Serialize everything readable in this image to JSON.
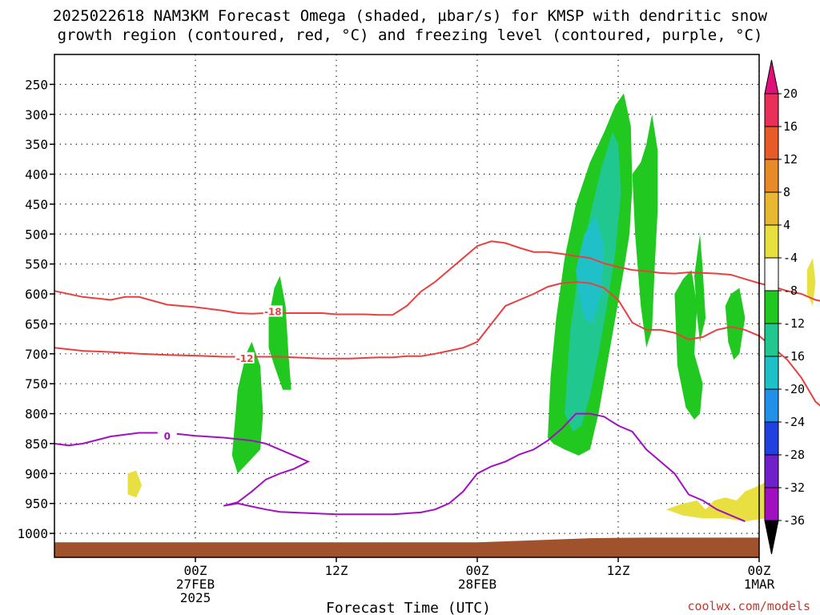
{
  "chart_data": {
    "type": "heatmap",
    "title_line1": "2025022618 NAM3KM Forecast Omega (shaded, µbar/s) for KMSP with dendritic snow",
    "title_line2": "growth region (contoured, red, °C) and freezing level (contoured, purple, °C)",
    "xlabel": "Forecast Time (UTC)",
    "credit": "coolwx.com/models",
    "x_axis": {
      "range_hours": [
        -10,
        40
      ],
      "ticks": [
        {
          "hour": 0,
          "line1": "00Z",
          "line2": "27FEB",
          "line3": "2025"
        },
        {
          "hour": 10,
          "line1": "12Z",
          "line2": "",
          "line3": ""
        },
        {
          "hour": 20,
          "line1": "00Z",
          "line2": "28FEB",
          "line3": ""
        },
        {
          "hour": 30,
          "line1": "12Z",
          "line2": "",
          "line3": ""
        },
        {
          "hour": 40,
          "line1": "00Z",
          "line2": "1MAR",
          "line3": ""
        }
      ]
    },
    "y_axis": {
      "unit": "hPa",
      "range": [
        200,
        1040
      ],
      "ticks": [
        250,
        300,
        350,
        400,
        450,
        500,
        550,
        600,
        650,
        700,
        750,
        800,
        850,
        900,
        950,
        1000
      ],
      "grid": true
    },
    "colorbar": {
      "levels": [
        {
          "label": "20",
          "color": "#e8305a"
        },
        {
          "label": "16",
          "color": "#e85a28"
        },
        {
          "label": "12",
          "color": "#e88a28"
        },
        {
          "label": "8",
          "color": "#e8b830"
        },
        {
          "label": "4",
          "color": "#e8e040"
        },
        {
          "label": "-4",
          "color": "#ffffff"
        },
        {
          "label": "-8",
          "color": "#20c820"
        },
        {
          "label": "-12",
          "color": "#20c890"
        },
        {
          "label": "-16",
          "color": "#20c0c8"
        },
        {
          "label": "-20",
          "color": "#2090e8"
        },
        {
          "label": "-24",
          "color": "#2040e0"
        },
        {
          "label": "-28",
          "color": "#7020c8"
        },
        {
          "label": "-32",
          "color": "#a010c0"
        },
        {
          "label": "-36",
          "color": "#a0a0a0"
        }
      ],
      "top_arrow_color": "#e0107a",
      "bottom_arrow_color": "#000000"
    },
    "terrain_color": "#a0522d",
    "omega_regions": [
      {
        "color": "#20c820",
        "points": [
          [
            2.6,
            870
          ],
          [
            3.0,
            760
          ],
          [
            3.6,
            700
          ],
          [
            4.0,
            680
          ],
          [
            4.6,
            720
          ],
          [
            4.8,
            800
          ],
          [
            4.6,
            860
          ],
          [
            3.8,
            880
          ],
          [
            3.0,
            900
          ]
        ]
      },
      {
        "color": "#20c820",
        "points": [
          [
            5.2,
            640
          ],
          [
            5.6,
            590
          ],
          [
            6.0,
            570
          ],
          [
            6.4,
            620
          ],
          [
            6.6,
            700
          ],
          [
            6.8,
            760
          ],
          [
            6.2,
            760
          ],
          [
            5.6,
            720
          ],
          [
            5.2,
            690
          ]
        ]
      },
      {
        "color": "#20c820",
        "points": [
          [
            25.0,
            840
          ],
          [
            25.2,
            740
          ],
          [
            25.6,
            640
          ],
          [
            26.2,
            540
          ],
          [
            27.0,
            450
          ],
          [
            28.0,
            380
          ],
          [
            29.0,
            330
          ],
          [
            29.8,
            285
          ],
          [
            30.4,
            265
          ],
          [
            30.9,
            320
          ],
          [
            31.0,
            420
          ],
          [
            30.8,
            500
          ],
          [
            30.4,
            560
          ],
          [
            29.8,
            640
          ],
          [
            29.2,
            720
          ],
          [
            28.6,
            800
          ],
          [
            28.0,
            860
          ],
          [
            27.2,
            870
          ],
          [
            26.2,
            860
          ],
          [
            25.4,
            850
          ]
        ]
      },
      {
        "color": "#20c890",
        "points": [
          [
            26.2,
            800
          ],
          [
            26.6,
            660
          ],
          [
            27.2,
            560
          ],
          [
            28.0,
            470
          ],
          [
            28.8,
            390
          ],
          [
            29.6,
            330
          ],
          [
            30.0,
            350
          ],
          [
            30.2,
            430
          ],
          [
            29.8,
            530
          ],
          [
            29.2,
            620
          ],
          [
            28.6,
            700
          ],
          [
            28.0,
            770
          ],
          [
            27.4,
            820
          ],
          [
            26.8,
            830
          ]
        ]
      },
      {
        "color": "#20c0c8",
        "points": [
          [
            27.0,
            560
          ],
          [
            27.6,
            500
          ],
          [
            28.4,
            470
          ],
          [
            29.0,
            520
          ],
          [
            28.8,
            600
          ],
          [
            28.2,
            650
          ],
          [
            27.6,
            640
          ],
          [
            27.2,
            600
          ]
        ]
      },
      {
        "color": "#20c820",
        "points": [
          [
            31.0,
            400
          ],
          [
            31.6,
            380
          ],
          [
            32.0,
            350
          ],
          [
            32.4,
            300
          ],
          [
            32.8,
            360
          ],
          [
            32.8,
            460
          ],
          [
            32.6,
            550
          ],
          [
            32.4,
            660
          ],
          [
            32.0,
            690
          ],
          [
            31.6,
            620
          ],
          [
            31.2,
            500
          ]
        ]
      },
      {
        "color": "#20c820",
        "points": [
          [
            34.0,
            600
          ],
          [
            34.6,
            575
          ],
          [
            35.2,
            560
          ],
          [
            35.6,
            620
          ],
          [
            35.4,
            700
          ],
          [
            36.0,
            750
          ],
          [
            35.8,
            800
          ],
          [
            35.4,
            810
          ],
          [
            34.8,
            790
          ],
          [
            34.2,
            720
          ]
        ]
      },
      {
        "color": "#20c820",
        "points": [
          [
            35.4,
            570
          ],
          [
            35.8,
            500
          ],
          [
            36.0,
            560
          ],
          [
            36.2,
            640
          ],
          [
            35.8,
            680
          ],
          [
            35.6,
            640
          ]
        ]
      },
      {
        "color": "#20c820",
        "points": [
          [
            37.6,
            620
          ],
          [
            38.0,
            600
          ],
          [
            38.6,
            590
          ],
          [
            39.0,
            640
          ],
          [
            38.6,
            700
          ],
          [
            38.2,
            710
          ],
          [
            37.8,
            680
          ]
        ]
      },
      {
        "color": "#e8e040",
        "points": [
          [
            -4.8,
            900
          ],
          [
            -4.2,
            895
          ],
          [
            -3.8,
            920
          ],
          [
            -4.2,
            940
          ],
          [
            -4.8,
            935
          ]
        ]
      },
      {
        "color": "#e8e040",
        "points": [
          [
            43.4,
            560
          ],
          [
            43.8,
            540
          ],
          [
            44.0,
            580
          ],
          [
            43.8,
            620
          ],
          [
            43.4,
            600
          ]
        ]
      },
      {
        "color": "#e8e040",
        "points": [
          [
            33.4,
            960
          ],
          [
            34.6,
            950
          ],
          [
            35.6,
            945
          ],
          [
            36.2,
            960
          ],
          [
            36.8,
            945
          ],
          [
            37.6,
            940
          ],
          [
            38.4,
            945
          ],
          [
            39.0,
            930
          ],
          [
            40.0,
            920
          ],
          [
            40.8,
            910
          ],
          [
            41.0,
            960
          ],
          [
            40.4,
            975
          ],
          [
            39.0,
            980
          ],
          [
            37.6,
            975
          ],
          [
            36.0,
            975
          ],
          [
            34.6,
            970
          ]
        ]
      }
    ],
    "contours": [
      {
        "name": "-18",
        "color": "#e84040",
        "label": "-18",
        "label_at": [
          5.5,
          630
        ],
        "points": [
          [
            -10,
            595
          ],
          [
            -8,
            605
          ],
          [
            -6,
            610
          ],
          [
            -5,
            605
          ],
          [
            -4,
            605
          ],
          [
            -2,
            618
          ],
          [
            0,
            622
          ],
          [
            2,
            628
          ],
          [
            3,
            632
          ],
          [
            4,
            633
          ],
          [
            5,
            632
          ],
          [
            6,
            632
          ],
          [
            7,
            632
          ],
          [
            8,
            632
          ],
          [
            9,
            632
          ],
          [
            10,
            634
          ],
          [
            11,
            634
          ],
          [
            12,
            634
          ],
          [
            13,
            635
          ],
          [
            14,
            635
          ],
          [
            15,
            620
          ],
          [
            16,
            596
          ],
          [
            17,
            580
          ],
          [
            18,
            560
          ],
          [
            19,
            540
          ],
          [
            20,
            520
          ],
          [
            21,
            512
          ],
          [
            22,
            515
          ],
          [
            23,
            523
          ],
          [
            24,
            530
          ],
          [
            25,
            530
          ],
          [
            26,
            533
          ],
          [
            27,
            537
          ],
          [
            28,
            540
          ],
          [
            29,
            549
          ],
          [
            30,
            555
          ],
          [
            31,
            560
          ],
          [
            32,
            562
          ],
          [
            33,
            565
          ],
          [
            34,
            566
          ],
          [
            35,
            564
          ],
          [
            36,
            565
          ],
          [
            37,
            566
          ],
          [
            38,
            568
          ],
          [
            39,
            575
          ],
          [
            40,
            582
          ],
          [
            41,
            588
          ],
          [
            42,
            595
          ],
          [
            43,
            600
          ],
          [
            44,
            610
          ],
          [
            45,
            615
          ]
        ]
      },
      {
        "name": "-12",
        "color": "#e84040",
        "label": "-12",
        "label_at": [
          3.5,
          708
        ],
        "points": [
          [
            -10,
            690
          ],
          [
            -8,
            695
          ],
          [
            -6,
            697
          ],
          [
            -4,
            700
          ],
          [
            -2,
            702
          ],
          [
            0,
            703
          ],
          [
            2,
            705
          ],
          [
            4,
            705
          ],
          [
            6,
            705
          ],
          [
            8,
            707
          ],
          [
            9,
            708
          ],
          [
            10,
            708
          ],
          [
            11,
            708
          ],
          [
            12,
            707
          ],
          [
            13,
            706
          ],
          [
            14,
            706
          ],
          [
            15,
            704
          ],
          [
            16,
            704
          ],
          [
            17,
            700
          ],
          [
            18,
            695
          ],
          [
            19,
            690
          ],
          [
            20,
            680
          ],
          [
            21,
            650
          ],
          [
            22,
            620
          ],
          [
            23,
            610
          ],
          [
            24,
            600
          ],
          [
            25,
            588
          ],
          [
            26,
            582
          ],
          [
            27,
            580
          ],
          [
            28,
            582
          ],
          [
            29,
            590
          ],
          [
            30,
            610
          ],
          [
            31,
            648
          ],
          [
            32,
            660
          ],
          [
            33,
            660
          ],
          [
            34,
            665
          ],
          [
            35,
            676
          ],
          [
            36,
            672
          ],
          [
            37,
            660
          ],
          [
            38,
            655
          ],
          [
            39,
            660
          ],
          [
            40,
            670
          ],
          [
            41,
            690
          ],
          [
            42,
            710
          ],
          [
            43,
            740
          ],
          [
            44,
            780
          ],
          [
            45,
            800
          ]
        ]
      },
      {
        "name": "0",
        "color": "#a010c0",
        "label": "0",
        "label_at": [
          -2.0,
          838
        ],
        "points": [
          [
            -10,
            850
          ],
          [
            -9,
            853
          ],
          [
            -8,
            850
          ],
          [
            -6,
            838
          ],
          [
            -4,
            832
          ],
          [
            -2,
            832
          ],
          [
            0,
            837
          ],
          [
            2,
            840
          ],
          [
            4,
            845
          ],
          [
            5,
            850
          ],
          [
            6,
            860
          ],
          [
            7,
            870
          ],
          [
            8,
            880
          ],
          [
            7,
            892
          ],
          [
            6,
            900
          ],
          [
            5,
            910
          ],
          [
            4,
            930
          ],
          [
            3,
            948
          ],
          [
            2,
            954
          ],
          [
            3,
            950
          ],
          [
            4,
            955
          ],
          [
            5,
            960
          ],
          [
            6,
            964
          ],
          [
            8,
            966
          ],
          [
            10,
            968
          ],
          [
            12,
            968
          ],
          [
            14,
            968
          ],
          [
            16,
            965
          ],
          [
            17,
            960
          ],
          [
            18,
            950
          ],
          [
            19,
            930
          ],
          [
            20,
            900
          ],
          [
            21,
            888
          ],
          [
            22,
            880
          ],
          [
            23,
            868
          ],
          [
            24,
            860
          ],
          [
            25,
            845
          ],
          [
            26,
            825
          ],
          [
            27,
            800
          ],
          [
            28,
            800
          ],
          [
            29,
            805
          ],
          [
            30,
            820
          ],
          [
            31,
            830
          ],
          [
            32,
            860
          ],
          [
            33,
            880
          ],
          [
            34,
            900
          ],
          [
            35,
            935
          ],
          [
            36,
            945
          ],
          [
            37,
            960
          ],
          [
            38,
            970
          ],
          [
            39,
            980
          ]
        ]
      }
    ]
  }
}
